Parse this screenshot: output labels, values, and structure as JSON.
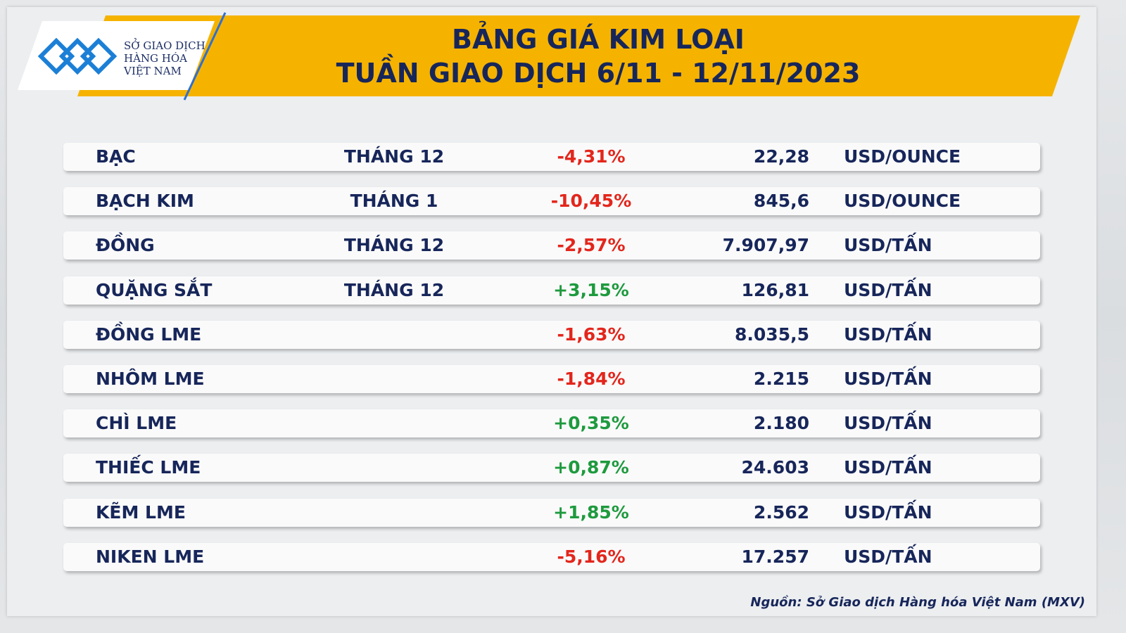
{
  "header": {
    "logo": {
      "lines": [
        "SỞ GIAO DỊCH",
        "HÀNG HÓA",
        "VIỆT NAM"
      ]
    },
    "title": [
      "BẢNG GIÁ KIM LOẠI",
      "TUẦN GIAO DỊCH 6/11 - 12/11/2023"
    ]
  },
  "table": {
    "colors": {
      "up": "#1e9a3e",
      "down": "#e3261c"
    },
    "rows": [
      {
        "name": "BẠC",
        "month": "THÁNG 12",
        "change": "-4,31%",
        "price": "22,28",
        "unit": "USD/OUNCE"
      },
      {
        "name": "BẠCH KIM",
        "month": "THÁNG 1",
        "change": "-10,45%",
        "price": "845,6",
        "unit": "USD/OUNCE"
      },
      {
        "name": "ĐỒNG",
        "month": "THÁNG 12",
        "change": "-2,57%",
        "price": "7.907,97",
        "unit": "USD/TẤN"
      },
      {
        "name": "QUẶNG SẮT",
        "month": "THÁNG 12",
        "change": "+3,15%",
        "price": "126,81",
        "unit": "USD/TẤN"
      },
      {
        "name": "ĐỒNG LME",
        "change": "-1,63%",
        "price": "8.035,5",
        "unit": "USD/TẤN"
      },
      {
        "name": "NHÔM LME",
        "change": "-1,84%",
        "price": "2.215",
        "unit": "USD/TẤN"
      },
      {
        "name": "CHÌ LME",
        "change": "+0,35%",
        "price": "2.180",
        "unit": "USD/TẤN"
      },
      {
        "name": "THIẾC LME",
        "change": "+0,87%",
        "price": "24.603",
        "unit": "USD/TẤN"
      },
      {
        "name": "KẼM LME",
        "change": "+1,85%",
        "price": "2.562",
        "unit": "USD/TẤN"
      },
      {
        "name": "NIKEN LME",
        "change": "-5,16%",
        "price": "17.257",
        "unit": "USD/TẤN"
      }
    ]
  },
  "source": "Nguồn: Sở Giao dịch Hàng hóa Việt Nam (MXV)"
}
